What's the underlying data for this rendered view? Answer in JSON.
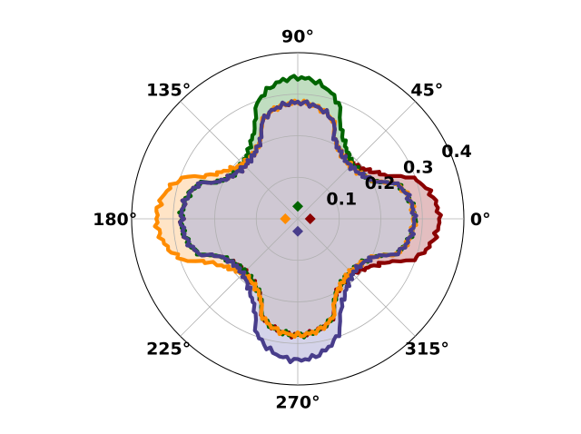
{
  "chart_data": {
    "type": "polar-area",
    "title": "",
    "angle_ticks": [
      {
        "deg": 0,
        "label": "0°"
      },
      {
        "deg": 45,
        "label": "45°"
      },
      {
        "deg": 90,
        "label": "90°"
      },
      {
        "deg": 135,
        "label": "135°"
      },
      {
        "deg": 180,
        "label": "180°"
      },
      {
        "deg": 225,
        "label": "225°"
      },
      {
        "deg": 270,
        "label": "270°"
      },
      {
        "deg": 315,
        "label": "315°"
      }
    ],
    "radial_ticks": [
      {
        "value": 0.1,
        "label": "0.1"
      },
      {
        "value": 0.2,
        "label": "0.2"
      },
      {
        "value": 0.3,
        "label": "0.3"
      },
      {
        "value": 0.4,
        "label": "0.4"
      }
    ],
    "rlim": [
      0,
      0.4
    ],
    "radial_label_angle_deg": 22.5,
    "grid": true,
    "series": [
      {
        "color": "#8b0000",
        "fill": "#d8a5a8",
        "petals": 8,
        "phase_deg": 0,
        "r_min": 0.18,
        "r_max": 0.28,
        "center_marker": {
          "theta_deg": 0,
          "r": 0.03
        }
      },
      {
        "color": "#006400",
        "fill": "#a8d0a8",
        "petals": 8,
        "phase_deg": 90,
        "r_min": 0.18,
        "r_max": 0.28,
        "center_marker": {
          "theta_deg": 90,
          "r": 0.03
        }
      },
      {
        "color": "#ff8c00",
        "fill": "#ffd9b0",
        "petals": 8,
        "phase_deg": 180,
        "r_min": 0.18,
        "r_max": 0.28,
        "center_marker": {
          "theta_deg": 180,
          "r": 0.03
        }
      },
      {
        "color": "#483d8b",
        "fill": "#c4c2e0",
        "petals": 8,
        "phase_deg": 270,
        "r_min": 0.18,
        "r_max": 0.28,
        "center_marker": {
          "theta_deg": 270,
          "r": 0.03
        }
      }
    ]
  }
}
